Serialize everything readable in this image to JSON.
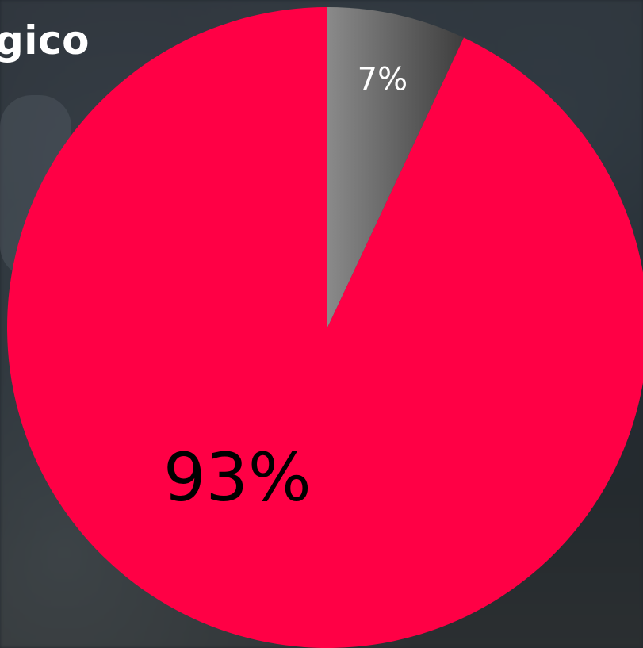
{
  "header": {
    "title_fragment": "gico"
  },
  "chart_data": {
    "type": "pie",
    "title": "",
    "slices": [
      {
        "label": "7%",
        "value": 7,
        "color": "#7a7a7a",
        "label_color": "#ffffff"
      },
      {
        "label": "93%",
        "value": 93,
        "color": "#ff0045",
        "label_color": "#000000"
      }
    ],
    "start_angle_deg": 0,
    "direction": "clockwise"
  },
  "colors": {
    "accent": "#ff0045",
    "muted": "#7a7a7a"
  }
}
